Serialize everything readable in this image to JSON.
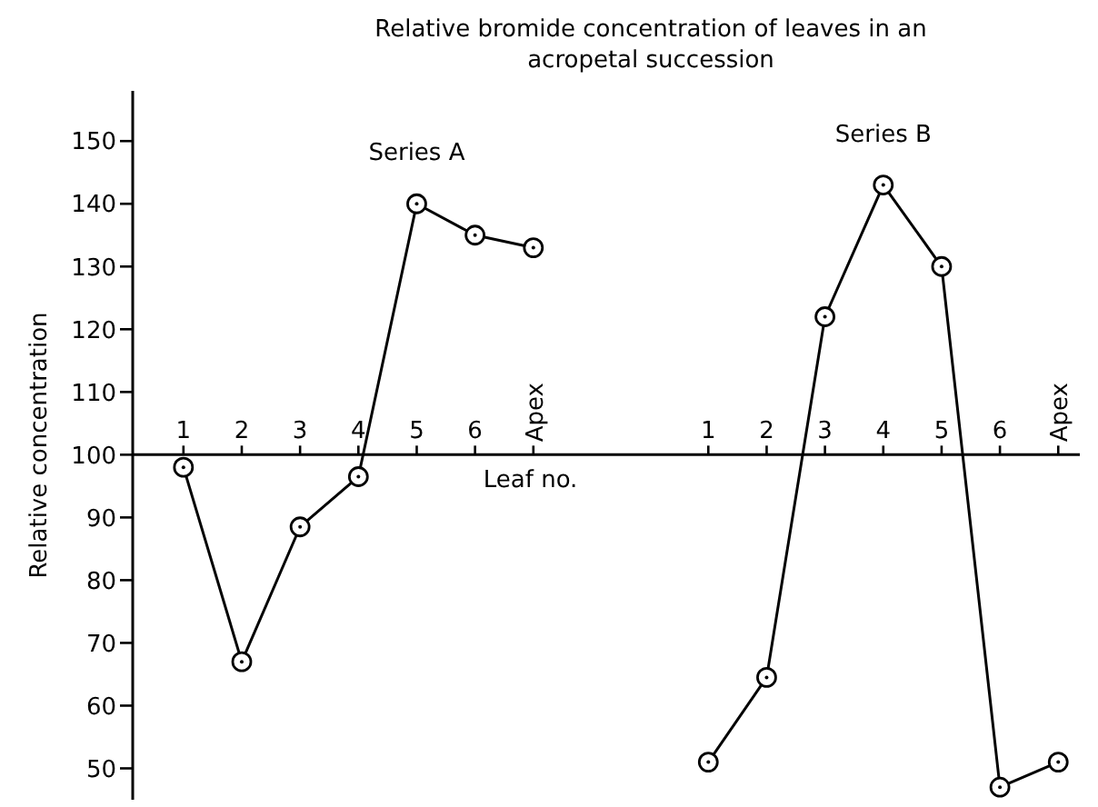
{
  "chart_data": {
    "type": "line",
    "title": "Relative bromide concentration of leaves in an acropetal succession",
    "xlabel": "Leaf no.",
    "ylabel": "Relative concentration",
    "categories": [
      "1",
      "2",
      "3",
      "4",
      "5",
      "6",
      "Apex",
      null,
      null,
      "1",
      "2",
      "3",
      "4",
      "5",
      "6",
      "Apex"
    ],
    "series": [
      {
        "name": "Series A",
        "color": "#000000",
        "values": [
          98,
          67,
          88.5,
          96.5,
          140,
          135,
          133,
          null,
          null,
          null,
          null,
          null,
          null,
          null,
          null,
          null
        ]
      },
      {
        "name": "Series B",
        "color": "#000000",
        "values": [
          null,
          null,
          null,
          null,
          null,
          null,
          null,
          null,
          null,
          51,
          64.5,
          122,
          143,
          130,
          47,
          51
        ]
      }
    ],
    "ylim": [
      45,
      158
    ],
    "yticks": [
      50,
      60,
      70,
      80,
      90,
      100,
      110,
      120,
      130,
      140,
      150
    ],
    "grid": false,
    "legend": false,
    "marker": "circle",
    "line_style": "solid"
  }
}
